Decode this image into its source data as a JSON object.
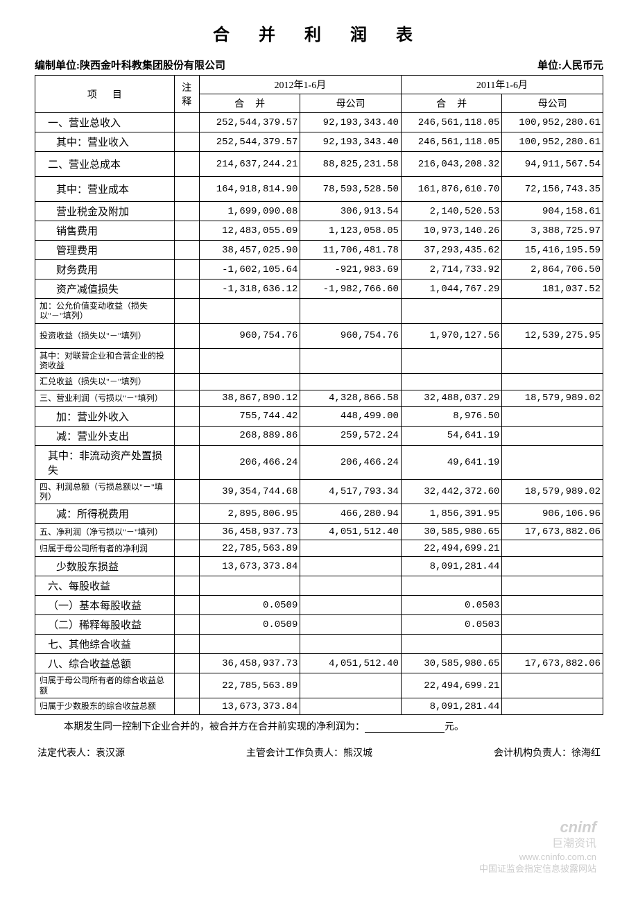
{
  "title": "合 并 利 润 表",
  "company_label": "编制单位:陕西金叶科教集团股份有限公司",
  "unit_label": "单位:人民币元",
  "headers": {
    "item": "项目",
    "note": "注释",
    "period_2012": "2012年1-6月",
    "period_2011": "2011年1-6月",
    "consolidated": "合并",
    "parent": "母公司"
  },
  "rows": [
    {
      "cls": "item-cell",
      "label": "一、营业总收入",
      "c1": "252,544,379.57",
      "p1": "92,193,343.40",
      "c2": "246,561,118.05",
      "p2": "100,952,280.61"
    },
    {
      "cls": "item-cell-indent",
      "label": "其中：营业收入",
      "c1": "252,544,379.57",
      "p1": "92,193,343.40",
      "c2": "246,561,118.05",
      "p2": "100,952,280.61"
    },
    {
      "cls": "item-cell",
      "label": "二、营业总成本",
      "c1": "214,637,244.21",
      "p1": "88,825,231.58",
      "c2": "216,043,208.32",
      "p2": "94,911,567.54",
      "tall": true
    },
    {
      "cls": "item-cell-indent",
      "label": "其中：营业成本",
      "c1": "164,918,814.90",
      "p1": "78,593,528.50",
      "c2": "161,876,610.70",
      "p2": "72,156,743.35",
      "tall": true
    },
    {
      "cls": "item-cell-indent",
      "label": "营业税金及附加",
      "c1": "1,699,090.08",
      "p1": "306,913.54",
      "c2": "2,140,520.53",
      "p2": "904,158.61"
    },
    {
      "cls": "item-cell-indent",
      "label": "销售费用",
      "c1": "12,483,055.09",
      "p1": "1,123,058.05",
      "c2": "10,973,140.26",
      "p2": "3,388,725.97"
    },
    {
      "cls": "item-cell-indent",
      "label": "管理费用",
      "c1": "38,457,025.90",
      "p1": "11,706,481.78",
      "c2": "37,293,435.62",
      "p2": "15,416,195.59"
    },
    {
      "cls": "item-cell-indent",
      "label": "财务费用",
      "c1": "-1,602,105.64",
      "p1": "-921,983.69",
      "c2": "2,714,733.92",
      "p2": "2,864,706.50"
    },
    {
      "cls": "item-cell-indent",
      "label": "资产减值损失",
      "c1": "-1,318,636.12",
      "p1": "-1,982,766.60",
      "c2": "1,044,767.29",
      "p2": "181,037.52"
    },
    {
      "cls": "item-cell-small",
      "label": "加：公允价值变动收益（损失以\"－\"填列）",
      "c1": "",
      "p1": "",
      "c2": "",
      "p2": ""
    },
    {
      "cls": "item-cell-small",
      "label": "投资收益（损失以\"－\"填列）",
      "c1": "960,754.76",
      "p1": "960,754.76",
      "c2": "1,970,127.56",
      "p2": "12,539,275.95",
      "tall": true
    },
    {
      "cls": "item-cell-small",
      "label": "其中：对联营企业和合营企业的投资收益",
      "c1": "",
      "p1": "",
      "c2": "",
      "p2": ""
    },
    {
      "cls": "item-cell-small",
      "label": "汇兑收益（损失以\"－\"填列）",
      "c1": "",
      "p1": "",
      "c2": "",
      "p2": ""
    },
    {
      "cls": "item-cell-small",
      "label": "三、营业利润（亏损以\"－\"填列）",
      "c1": "38,867,890.12",
      "p1": "4,328,866.58",
      "c2": "32,488,037.29",
      "p2": "18,579,989.02"
    },
    {
      "cls": "item-cell-indent",
      "label": "加：营业外收入",
      "c1": "755,744.42",
      "p1": "448,499.00",
      "c2": "8,976.50",
      "p2": ""
    },
    {
      "cls": "item-cell-indent",
      "label": "减：营业外支出",
      "c1": "268,889.86",
      "p1": "259,572.24",
      "c2": "54,641.19",
      "p2": ""
    },
    {
      "cls": "item-cell",
      "label": "其中：非流动资产处置损失",
      "c1": "206,466.24",
      "p1": "206,466.24",
      "c2": "49,641.19",
      "p2": "",
      "tall": true
    },
    {
      "cls": "item-cell-small",
      "label": "四、利润总额（亏损总额以\"－\"填列）",
      "c1": "39,354,744.68",
      "p1": "4,517,793.34",
      "c2": "32,442,372.60",
      "p2": "18,579,989.02"
    },
    {
      "cls": "item-cell-indent",
      "label": "减：所得税费用",
      "c1": "2,895,806.95",
      "p1": "466,280.94",
      "c2": "1,856,391.95",
      "p2": "906,106.96"
    },
    {
      "cls": "item-cell-small",
      "label": "五、净利润（净亏损以\"－\"填列）",
      "c1": "36,458,937.73",
      "p1": "4,051,512.40",
      "c2": "30,585,980.65",
      "p2": "17,673,882.06"
    },
    {
      "cls": "item-cell-small",
      "label": "归属于母公司所有者的净利润",
      "c1": "22,785,563.89",
      "p1": "",
      "c2": "22,494,699.21",
      "p2": ""
    },
    {
      "cls": "item-cell-indent",
      "label": "少数股东损益",
      "c1": "13,673,373.84",
      "p1": "",
      "c2": "8,091,281.44",
      "p2": ""
    },
    {
      "cls": "item-cell",
      "label": "六、每股收益",
      "c1": "",
      "p1": "",
      "c2": "",
      "p2": ""
    },
    {
      "cls": "item-cell",
      "label": "（一）基本每股收益",
      "c1": "0.0509",
      "p1": "",
      "c2": "0.0503",
      "p2": ""
    },
    {
      "cls": "item-cell",
      "label": "（二）稀释每股收益",
      "c1": "0.0509",
      "p1": "",
      "c2": "0.0503",
      "p2": ""
    },
    {
      "cls": "item-cell",
      "label": "七、其他综合收益",
      "c1": "",
      "p1": "",
      "c2": "",
      "p2": ""
    },
    {
      "cls": "item-cell",
      "label": "八、综合收益总额",
      "c1": "36,458,937.73",
      "p1": "4,051,512.40",
      "c2": "30,585,980.65",
      "p2": "17,673,882.06"
    },
    {
      "cls": "item-cell-small",
      "label": "归属于母公司所有者的综合收益总额",
      "c1": "22,785,563.89",
      "p1": "",
      "c2": "22,494,699.21",
      "p2": ""
    },
    {
      "cls": "item-cell-small",
      "label": "归属于少数股东的综合收益总额",
      "c1": "13,673,373.84",
      "p1": "",
      "c2": "8,091,281.44",
      "p2": ""
    }
  ],
  "footer_note_prefix": "本期发生同一控制下企业合并的，被合并方在合并前实现的净利润为：",
  "footer_note_suffix": "元。",
  "signatures": {
    "legal_rep": "法定代表人：袁汉源",
    "accounting_head": "主管会计工作负责人：熊汉城",
    "accounting_org": "会计机构负责人：徐海红"
  },
  "watermark": {
    "logo": "cninf",
    "sub": "巨潮资讯",
    "url": "www.cninfo.com.cn",
    "desc": "中国证监会指定信息披露网站"
  }
}
